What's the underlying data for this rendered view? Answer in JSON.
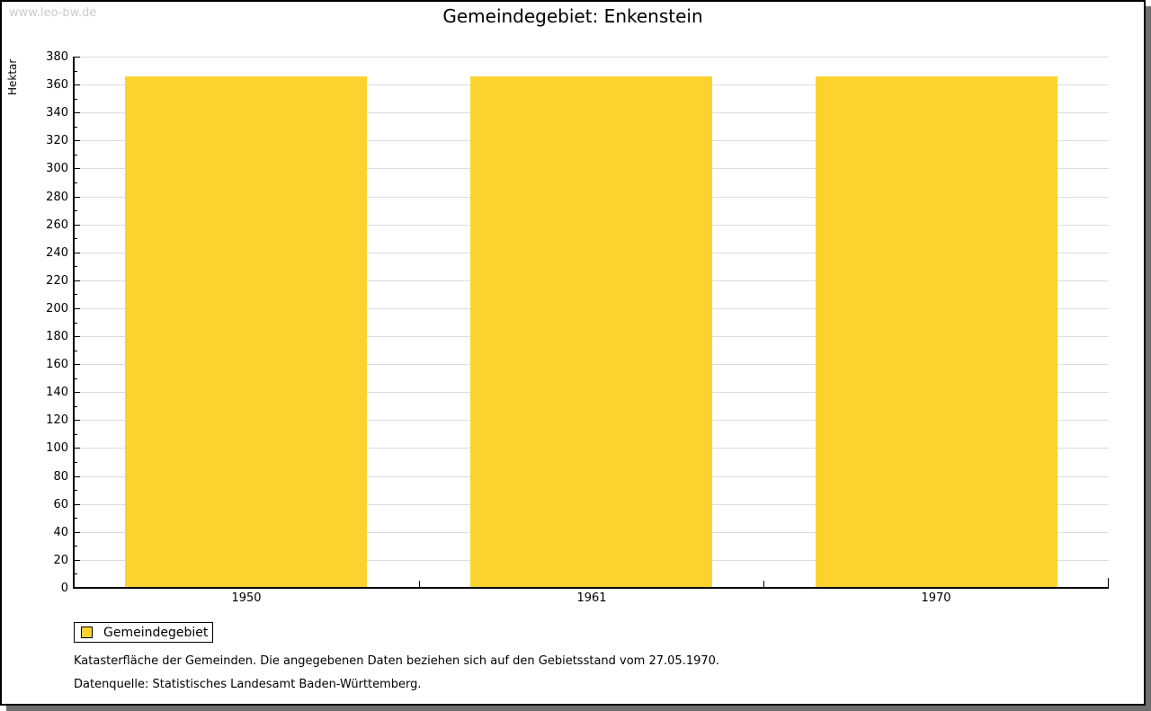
{
  "watermark": "www.leo-bw.de",
  "chart_data": {
    "type": "bar",
    "title": "Gemeindegebiet: Enkenstein",
    "categories": [
      "1950",
      "1961",
      "1970"
    ],
    "series": [
      {
        "name": "Gemeindegebiet",
        "values": [
          366,
          366,
          366
        ]
      }
    ],
    "ylabel": "Hektar",
    "xlabel": "",
    "ylim": [
      0,
      380
    ],
    "ytick_step": 20,
    "ytick_minor_step": 10,
    "grid": true,
    "legend_position": "bottom-left"
  },
  "legend": {
    "label": "Gemeindegebiet"
  },
  "footer": {
    "line1": "Katasterfläche der Gemeinden. Die angegebenen Daten beziehen sich auf den Gebietsstand vom 27.05.1970.",
    "line2": "Datenquelle: Statistisches Landesamt Baden-Württemberg."
  },
  "colors": {
    "bar": "#fcd32e",
    "grid": "#dddddd",
    "axis": "#000000",
    "watermark": "#cccccc",
    "shadow": "#6e6e6e",
    "text": "#000000"
  }
}
